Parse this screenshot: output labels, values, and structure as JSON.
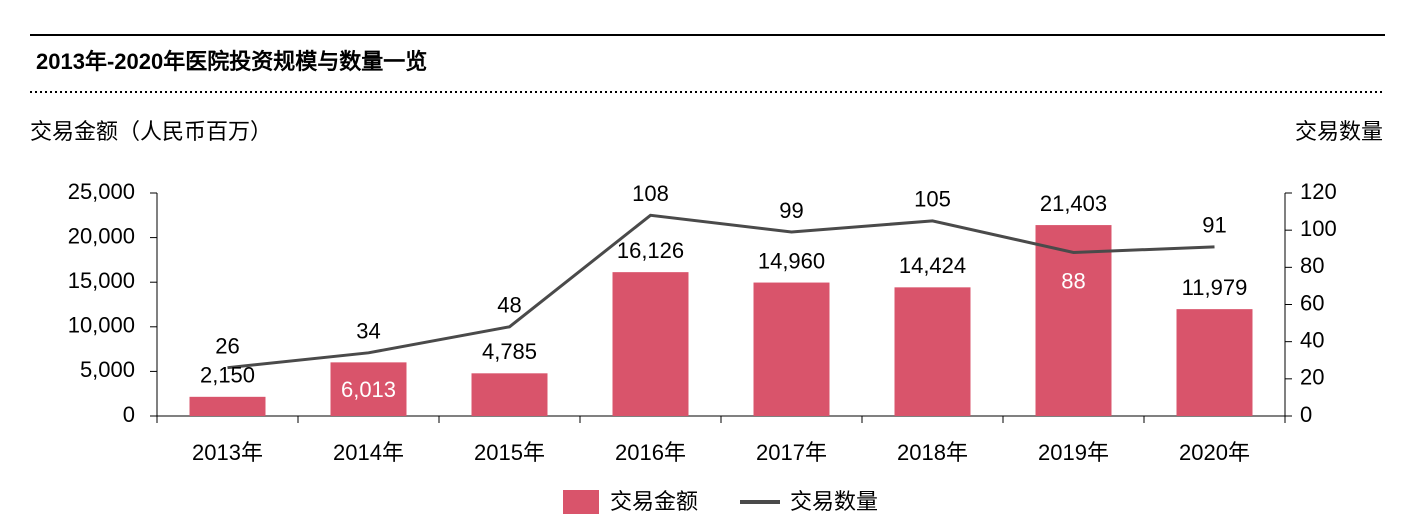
{
  "chart_data": {
    "type": "bar-line",
    "title": "2013年-2020年医院投资规模与数量一览",
    "y_label": "交易金额（人民币百万）",
    "y2_label": "交易数量",
    "categories": [
      "2013年",
      "2014年",
      "2015年",
      "2016年",
      "2017年",
      "2018年",
      "2019年",
      "2020年"
    ],
    "series": [
      {
        "name": "交易金额",
        "type": "bar",
        "color": "#d9546b",
        "values": [
          2150,
          6013,
          4785,
          16126,
          14960,
          14424,
          21403,
          11979
        ],
        "value_labels": [
          "2,150",
          "6,013",
          "4,785",
          "16,126",
          "14,960",
          "14,424",
          "21,403",
          "11,979"
        ]
      },
      {
        "name": "交易数量",
        "type": "line",
        "axis": "y2",
        "color": "#4a4a4a",
        "values": [
          26,
          34,
          48,
          108,
          99,
          105,
          88,
          91
        ]
      }
    ],
    "ylim": [
      0,
      25000
    ],
    "yticks": [
      0,
      {
        "value": 5000,
        "label": "5,000"
      },
      {
        "value": 10000,
        "label": "10,000"
      },
      {
        "value": 15000,
        "label": "15,000"
      },
      {
        "value": 20000,
        "label": "20,000"
      },
      {
        "value": 25000,
        "label": "25,000"
      }
    ],
    "y2lim": [
      0,
      120
    ],
    "y2ticks": [
      0,
      20,
      40,
      60,
      80,
      100,
      120
    ]
  }
}
